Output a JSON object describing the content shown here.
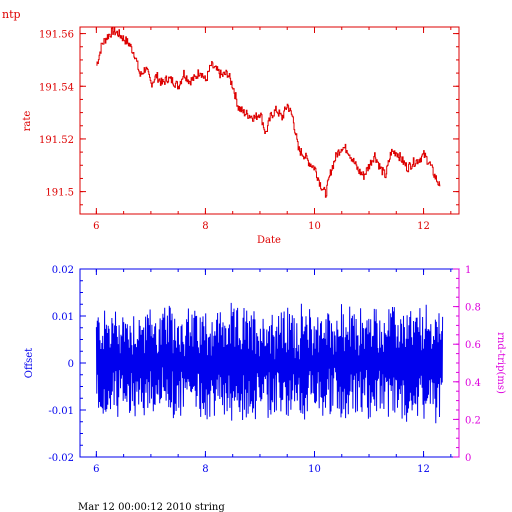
{
  "corner_label": "ntp",
  "footer": "Mar 12 00:00:12 2010 string",
  "colors": {
    "red": "#dd0000",
    "blue": "#0000ee",
    "magenta": "#dd00dd"
  },
  "chart_data": [
    {
      "type": "line",
      "xlabel": "Date",
      "ylabel": "rate",
      "xlim": [
        5.7,
        12.65
      ],
      "ylim": [
        191.4915,
        191.5625
      ],
      "xticks": [
        6,
        8,
        10,
        12
      ],
      "yticks": [
        191.5,
        191.52,
        191.54,
        191.56
      ],
      "ytick_labels": [
        "191.5",
        "191.52",
        "191.54",
        "191.56"
      ],
      "series": [
        {
          "x": [
            6.0,
            6.1,
            6.2,
            6.3,
            6.4,
            6.5,
            6.6,
            6.7,
            6.8,
            6.9,
            7.0,
            7.1,
            7.2,
            7.3,
            7.4,
            7.5,
            7.6,
            7.7,
            7.8,
            7.9,
            8.0,
            8.1,
            8.2,
            8.3,
            8.4,
            8.5,
            8.6,
            8.7,
            8.8,
            8.9,
            9.0,
            9.1,
            9.2,
            9.3,
            9.4,
            9.5,
            9.6,
            9.7,
            9.8,
            9.9,
            10.0,
            10.1,
            10.2,
            10.3,
            10.4,
            10.5,
            10.6,
            10.7,
            10.8,
            10.9,
            11.0,
            11.1,
            11.2,
            11.3,
            11.4,
            11.5,
            11.6,
            11.7,
            11.8,
            11.9,
            12.0,
            12.1,
            12.2,
            12.3
          ],
          "y": [
            191.548,
            191.556,
            191.559,
            191.561,
            191.56,
            191.558,
            191.556,
            191.552,
            191.544,
            191.547,
            191.541,
            191.544,
            191.541,
            191.543,
            191.542,
            191.54,
            191.545,
            191.542,
            191.543,
            191.546,
            191.542,
            191.548,
            191.546,
            191.544,
            191.545,
            191.54,
            191.532,
            191.53,
            191.529,
            191.528,
            191.53,
            191.522,
            191.529,
            191.531,
            191.528,
            191.533,
            191.528,
            191.516,
            191.514,
            191.511,
            191.509,
            191.503,
            191.499,
            191.508,
            191.514,
            191.517,
            191.516,
            191.512,
            191.508,
            191.506,
            191.51,
            191.514,
            191.509,
            191.506,
            191.515,
            191.515,
            191.512,
            191.509,
            191.511,
            191.512,
            191.514,
            191.511,
            191.506,
            191.502
          ]
        }
      ]
    },
    {
      "type": "line",
      "ylabel": "Offset",
      "y2label": "rnd-trip(ms)",
      "xlim": [
        5.7,
        12.65
      ],
      "ylim": [
        -0.02,
        0.02
      ],
      "y2lim": [
        0,
        1
      ],
      "xticks": [
        6,
        8,
        10,
        12
      ],
      "yticks": [
        -0.02,
        -0.01,
        0,
        0.01,
        0.02
      ],
      "ytick_labels": [
        "-0.02",
        "-0.01",
        "0",
        "0.01",
        "0.02"
      ],
      "y2ticks": [
        0,
        0.2,
        0.4,
        0.6,
        0.8,
        1
      ],
      "y2tick_labels": [
        "0",
        "0.2",
        "0.4",
        "0.6",
        "0.8",
        "1"
      ],
      "series": [
        {
          "x_range": [
            6.0,
            12.35
          ],
          "y_range": [
            -0.015,
            0.013
          ],
          "amplitude": 0.0095
        }
      ]
    }
  ]
}
